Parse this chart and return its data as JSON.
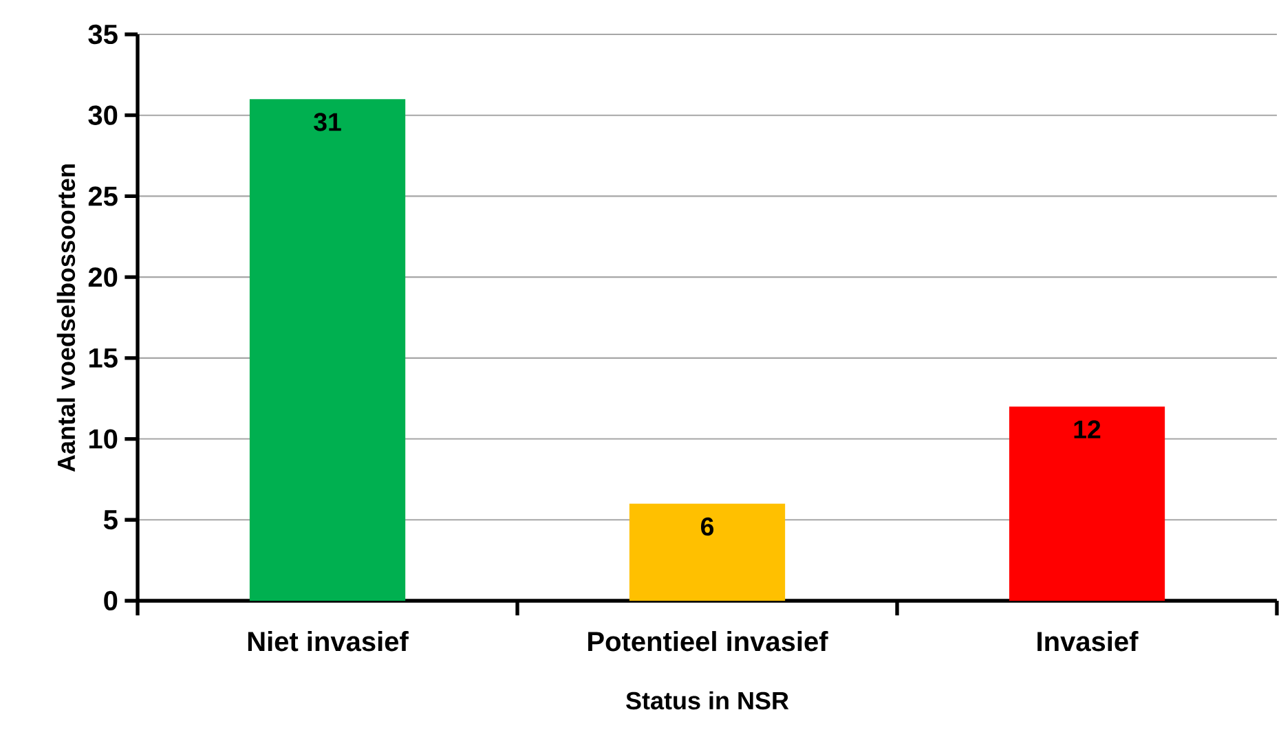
{
  "chart_data": {
    "type": "bar",
    "xlabel": "Status in NSR",
    "ylabel": "Aantal voedselbossoorten",
    "categories": [
      "Niet invasief",
      "Potentieel invasief",
      "Invasief"
    ],
    "values": [
      31,
      6,
      12
    ],
    "colors": [
      "#00b050",
      "#ffc000",
      "#ff0000"
    ],
    "ylim": [
      0,
      35
    ],
    "yticks": [
      0,
      5,
      10,
      15,
      20,
      25,
      30,
      35
    ],
    "grid": "y",
    "data_labels": true
  }
}
